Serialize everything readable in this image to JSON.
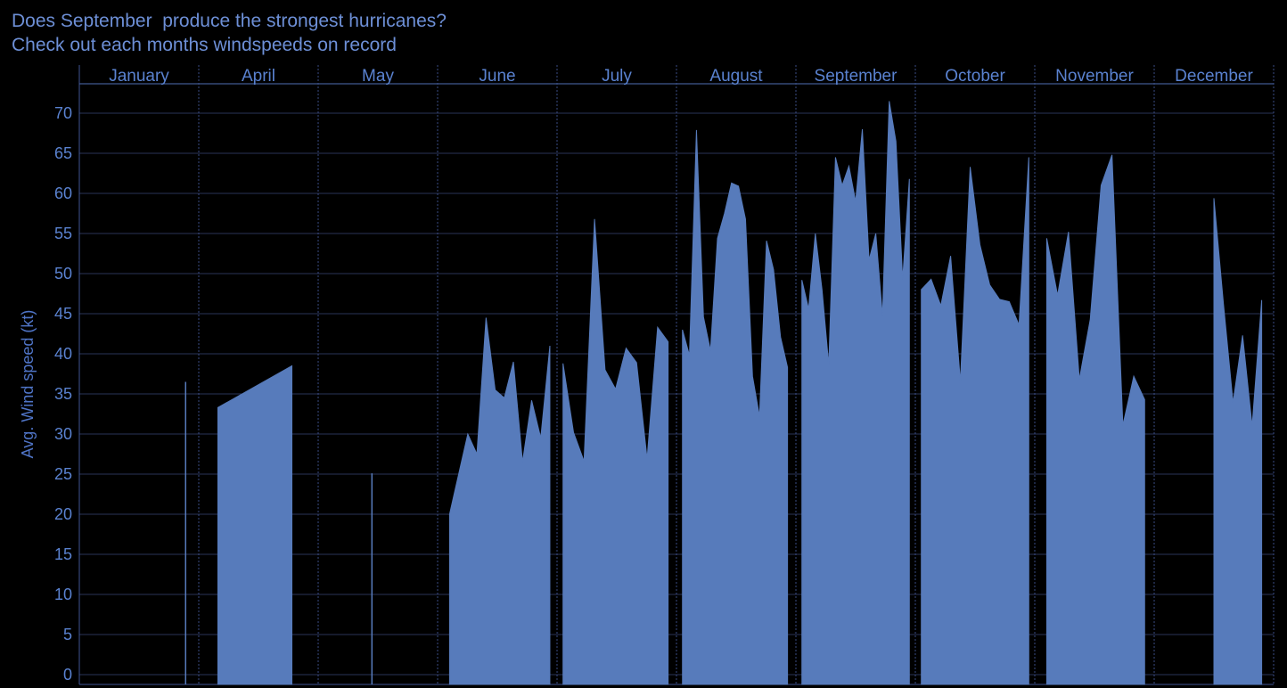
{
  "header": {
    "title": "Does September  produce the strongest hurricanes?",
    "subtitle": "Check out each months windspeeds on record"
  },
  "colors": {
    "background": "#000000",
    "area_fill": "#577bbb",
    "text": "#5a82d0",
    "grid": "#2a3457"
  },
  "chart_data": {
    "type": "area",
    "title": "Does September  produce the strongest hurricanes?",
    "subtitle": "Check out each months windspeeds on record",
    "ylabel": "Avg. Wind speed (kt)",
    "xlabel": "",
    "ylim": [
      0,
      75
    ],
    "yticks": [
      0,
      5,
      10,
      15,
      20,
      25,
      30,
      35,
      40,
      45,
      50,
      55,
      60,
      65,
      70
    ],
    "grid": true,
    "facets": [
      "January",
      "April",
      "May",
      "June",
      "July",
      "August",
      "September",
      "October",
      "November",
      "December"
    ],
    "series": [
      {
        "month": "January",
        "values": [
          36.5
        ]
      },
      {
        "month": "April",
        "values": [
          33.3,
          38.5
        ]
      },
      {
        "month": "May",
        "values": [
          25.1
        ]
      },
      {
        "month": "June",
        "values": [
          20,
          25,
          30,
          27.5,
          44.5,
          35.5,
          34.5,
          39,
          26.5,
          34.2,
          29.5,
          41
        ]
      },
      {
        "month": "July",
        "values": [
          38.8,
          30.2,
          26.6,
          56.8,
          38,
          35.6,
          40.7,
          38.9,
          26.9,
          43.3,
          41.5
        ]
      },
      {
        "month": "August",
        "values": [
          43,
          39.8,
          67.9,
          44.6,
          40.4,
          54.4,
          57.5,
          61.3,
          60.9,
          56.8,
          37.2,
          32.2,
          54.1,
          50.5,
          42.1,
          38.3
        ]
      },
      {
        "month": "September",
        "values": [
          49.2,
          45.6,
          55,
          48,
          38.6,
          64.5,
          61,
          63.4,
          59,
          68,
          51.7,
          55,
          44.7,
          71.5,
          66.5,
          49.3,
          61.8
        ]
      },
      {
        "month": "October",
        "values": [
          48,
          49.3,
          46,
          52.2,
          36.5,
          63.3,
          53.6,
          48.6,
          46.8,
          46.5,
          43.6,
          64.5
        ]
      },
      {
        "month": "November",
        "values": [
          54.4,
          47.3,
          55.2,
          36.8,
          44.3,
          61,
          64.8,
          31.1,
          37.2,
          34.3
        ]
      },
      {
        "month": "December",
        "values": [
          59.4,
          46.2,
          33.9,
          42.3,
          31,
          46.7
        ]
      }
    ]
  }
}
